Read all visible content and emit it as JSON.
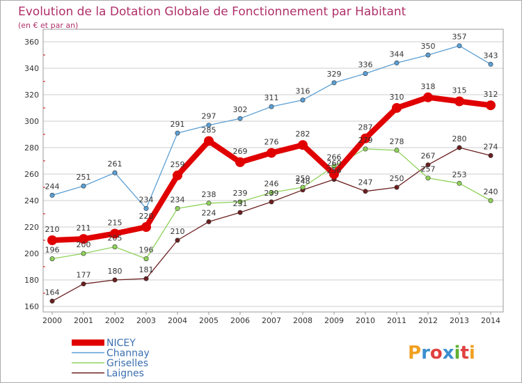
{
  "title": "Evolution de la Dotation Globale de Fonctionnement par Habitant",
  "subtitle": "(en € et par an)",
  "logo_text": "Proxiti",
  "colors": {
    "title": "#b0306a",
    "grid": "#cccccc",
    "axis": "#999999",
    "tickmarks": "#cc0000",
    "logo": [
      "#f0a020",
      "#3a8fd0",
      "#e04040",
      "#3a8fd0",
      "#60b030",
      "#e04040",
      "#f0a020"
    ]
  },
  "chart_data": {
    "type": "line",
    "x": [
      2000,
      2001,
      2002,
      2003,
      2004,
      2005,
      2006,
      2007,
      2008,
      2009,
      2010,
      2011,
      2012,
      2013,
      2014
    ],
    "ylim": [
      160,
      360
    ],
    "yticks": [
      160,
      180,
      200,
      220,
      240,
      260,
      280,
      300,
      320,
      340,
      360
    ],
    "grid": "horizontal",
    "legend_position": "bottom-left",
    "series": [
      {
        "name": "Laignes",
        "color": "#6b1f1f",
        "values": [
          164,
          177,
          180,
          181,
          210,
          224,
          231,
          239,
          248,
          256,
          247,
          250,
          267,
          280,
          274
        ]
      },
      {
        "name": "Griselles",
        "color": "#8fd25a",
        "values": [
          196,
          200,
          205,
          196,
          234,
          238,
          239,
          246,
          250,
          266,
          279,
          278,
          257,
          253,
          240
        ]
      },
      {
        "name": "Channay",
        "color": "#5a9fd5",
        "values": [
          244,
          251,
          261,
          234,
          291,
          297,
          302,
          311,
          316,
          329,
          336,
          344,
          350,
          357,
          343
        ]
      },
      {
        "name": "NICEY",
        "color": "#e00000",
        "values": [
          210,
          211,
          215,
          220,
          259,
          285,
          269,
          276,
          282,
          260,
          287,
          310,
          318,
          315,
          312
        ]
      }
    ],
    "legend_order": [
      "NICEY",
      "Channay",
      "Griselles",
      "Laignes"
    ]
  }
}
